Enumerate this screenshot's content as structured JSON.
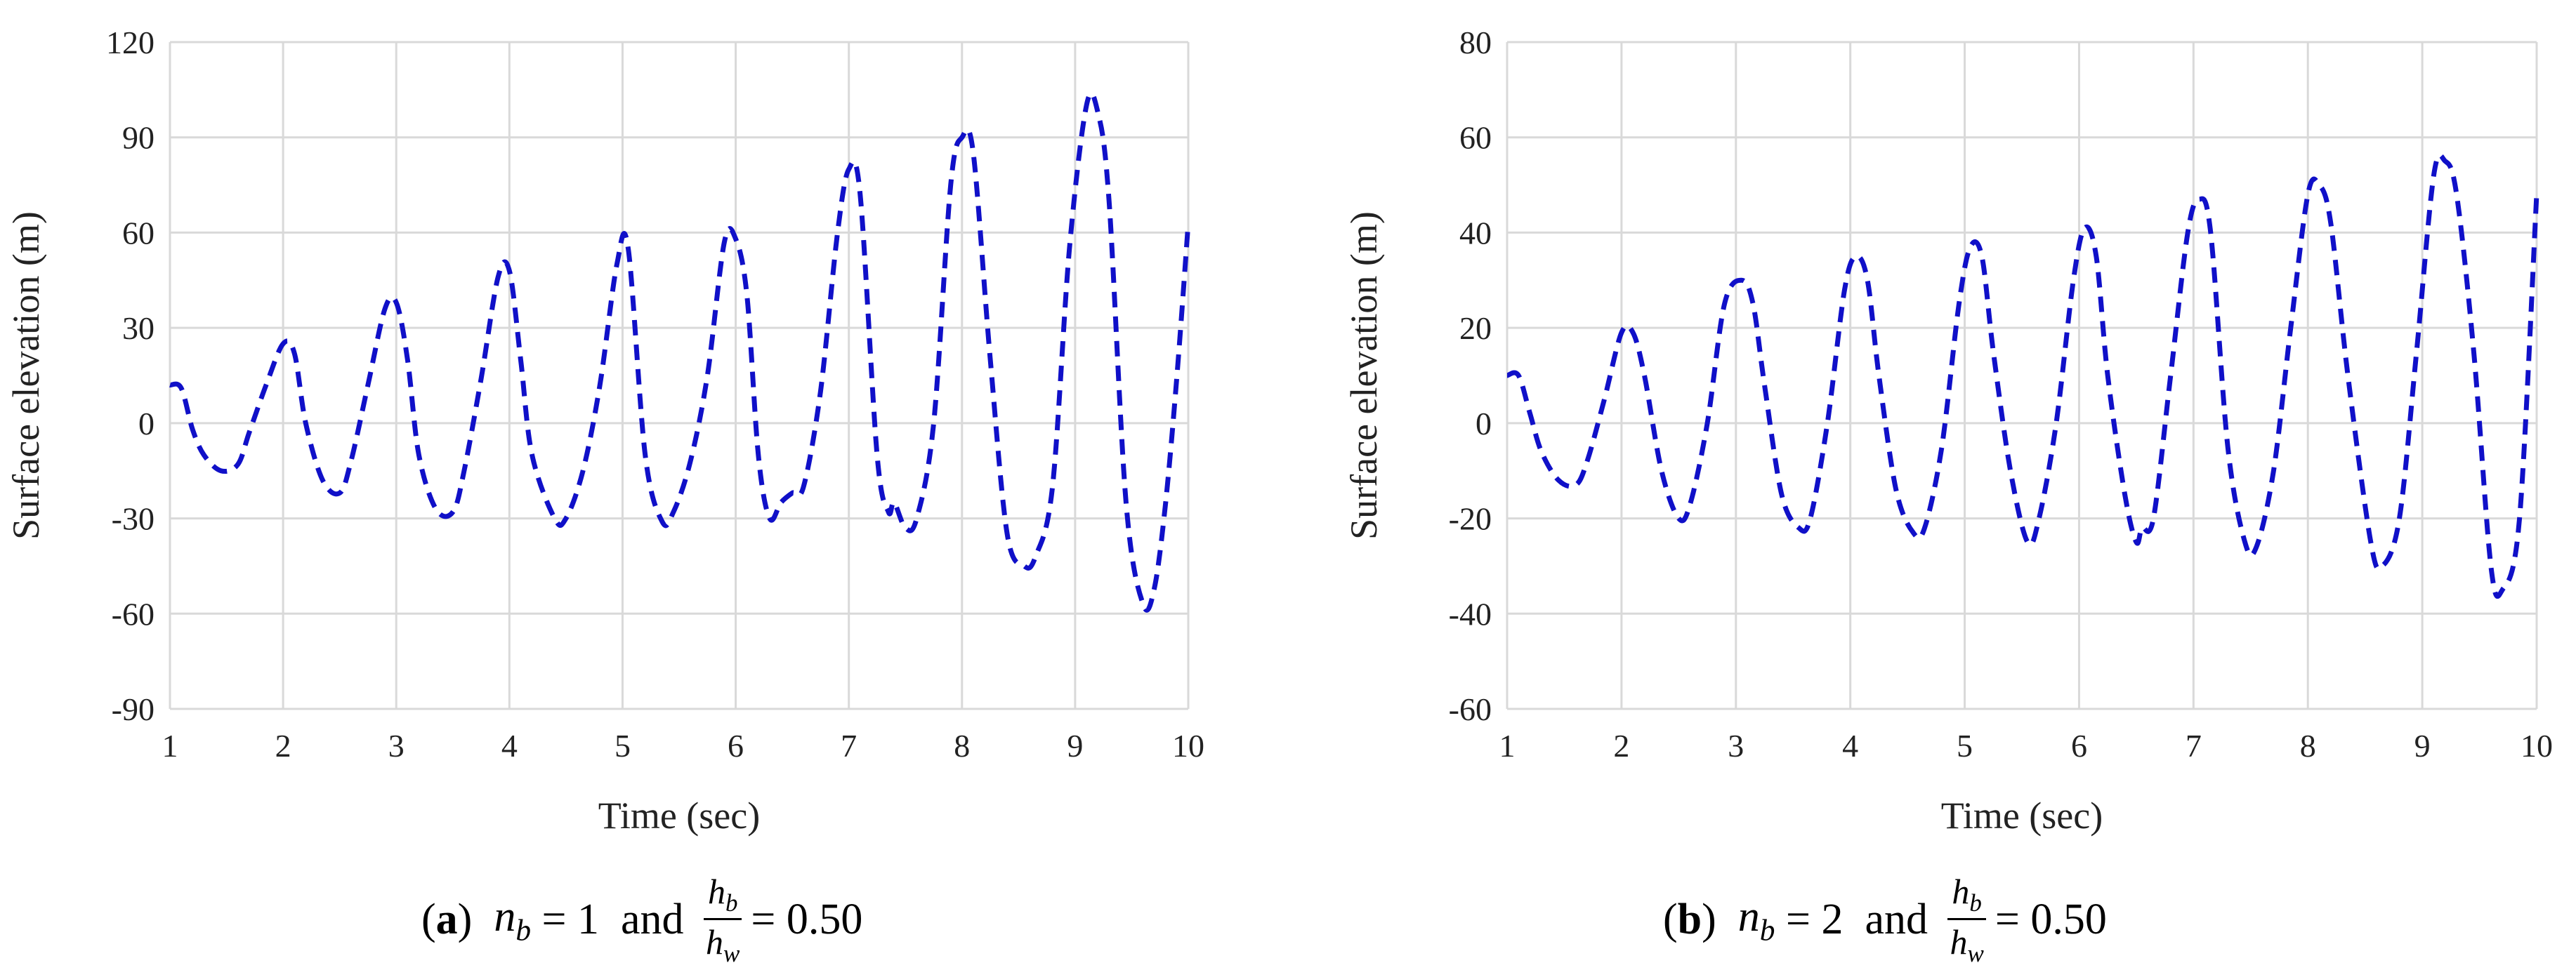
{
  "chart_data": [
    {
      "type": "line",
      "panel": "a",
      "xlabel": "Time (sec)",
      "ylabel": "Surface elevation (m)",
      "xlim": [
        1,
        10
      ],
      "ylim": [
        -90,
        120
      ],
      "xticks": [
        "1",
        "2",
        "3",
        "4",
        "5",
        "6",
        "7",
        "8",
        "9",
        "10"
      ],
      "yticks": [
        "-90",
        "-60",
        "-30",
        "0",
        "30",
        "60",
        "90",
        "120"
      ],
      "grid": true,
      "line_style": "dashed",
      "color": "#1010c8",
      "x": [
        1.0,
        1.1,
        1.2,
        1.3,
        1.45,
        1.6,
        1.7,
        1.85,
        2.0,
        2.1,
        2.2,
        2.35,
        2.5,
        2.6,
        2.75,
        2.9,
        3.0,
        3.1,
        3.2,
        3.35,
        3.5,
        3.6,
        3.75,
        3.9,
        4.0,
        4.1,
        4.2,
        4.4,
        4.5,
        4.65,
        4.8,
        4.95,
        5.05,
        5.2,
        5.35,
        5.45,
        5.6,
        5.75,
        5.9,
        6.0,
        6.1,
        6.2,
        6.3,
        6.4,
        6.5,
        6.6,
        6.75,
        6.9,
        7.0,
        7.1,
        7.25,
        7.35,
        7.4,
        7.5,
        7.6,
        7.75,
        7.9,
        8.0,
        8.1,
        8.25,
        8.4,
        8.55,
        8.65,
        8.8,
        8.95,
        9.1,
        9.2,
        9.3,
        9.45,
        9.6,
        9.7,
        9.8,
        9.9,
        10.0
      ],
      "y": [
        12,
        11,
        -2,
        -10,
        -15,
        -13,
        -3,
        12,
        25,
        22,
        0,
        -18,
        -22,
        -12,
        12,
        36,
        38,
        20,
        -10,
        -27,
        -28,
        -15,
        14,
        46,
        48,
        20,
        -10,
        -30,
        -30,
        -15,
        12,
        50,
        55,
        -10,
        -31,
        -28,
        -12,
        15,
        57,
        58,
        40,
        -10,
        -30,
        -25,
        -22,
        -20,
        10,
        60,
        80,
        72,
        -10,
        -28,
        -25,
        -33,
        -30,
        0,
        75,
        90,
        85,
        20,
        -35,
        -45,
        -42,
        -20,
        55,
        100,
        98,
        70,
        -25,
        -57,
        -52,
        -25,
        15,
        63
      ]
    },
    {
      "type": "line",
      "panel": "b",
      "xlabel": "Time (sec)",
      "ylabel": "Surface elevation (m)",
      "xlim": [
        1,
        10
      ],
      "ylim": [
        -60,
        80
      ],
      "xticks": [
        "1",
        "2",
        "3",
        "4",
        "5",
        "6",
        "7",
        "8",
        "9",
        "10"
      ],
      "yticks": [
        "-60",
        "-40",
        "-20",
        "0",
        "20",
        "40",
        "60",
        "80"
      ],
      "grid": true,
      "line_style": "dashed",
      "color": "#1010c8",
      "x": [
        1.0,
        1.1,
        1.2,
        1.3,
        1.45,
        1.6,
        1.7,
        1.85,
        2.0,
        2.1,
        2.2,
        2.35,
        2.5,
        2.6,
        2.75,
        2.9,
        3.05,
        3.15,
        3.25,
        3.4,
        3.55,
        3.65,
        3.8,
        3.95,
        4.05,
        4.15,
        4.25,
        4.4,
        4.55,
        4.65,
        4.8,
        4.95,
        5.05,
        5.15,
        5.25,
        5.4,
        5.55,
        5.65,
        5.8,
        5.95,
        6.05,
        6.15,
        6.25,
        6.4,
        6.5,
        6.55,
        6.65,
        6.8,
        6.95,
        7.05,
        7.15,
        7.3,
        7.45,
        7.55,
        7.7,
        7.85,
        8.0,
        8.1,
        8.2,
        8.35,
        8.55,
        8.65,
        8.8,
        8.95,
        9.1,
        9.2,
        9.3,
        9.45,
        9.6,
        9.7,
        9.85,
        10.0
      ],
      "y": [
        10,
        10,
        2,
        -6,
        -12,
        -13,
        -8,
        5,
        19,
        19,
        10,
        -10,
        -20,
        -17,
        0,
        25,
        30,
        25,
        8,
        -15,
        -22,
        -20,
        0,
        28,
        35,
        30,
        10,
        -14,
        -23,
        -22,
        -5,
        25,
        37,
        35,
        15,
        -10,
        -25,
        -20,
        0,
        30,
        41,
        35,
        10,
        -15,
        -25,
        -22,
        -20,
        10,
        40,
        47,
        40,
        -5,
        -25,
        -26,
        -10,
        20,
        48,
        50,
        42,
        10,
        -25,
        -30,
        -20,
        15,
        52,
        55,
        48,
        15,
        -30,
        -35,
        -20,
        48
      ]
    }
  ],
  "captions": [
    {
      "tag": "a",
      "nb_label": "n",
      "nb_sub": "b",
      "nb_value": "= 1",
      "and": "and",
      "frac_num": "h",
      "frac_num_sub": "b",
      "frac_den": "h",
      "frac_den_sub": "w",
      "frac_value": "= 0.50"
    },
    {
      "tag": "b",
      "nb_label": "n",
      "nb_sub": "b",
      "nb_value": "= 2",
      "and": "and",
      "frac_num": "h",
      "frac_num_sub": "b",
      "frac_den": "h",
      "frac_den_sub": "w",
      "frac_value": "= 0.50"
    }
  ]
}
